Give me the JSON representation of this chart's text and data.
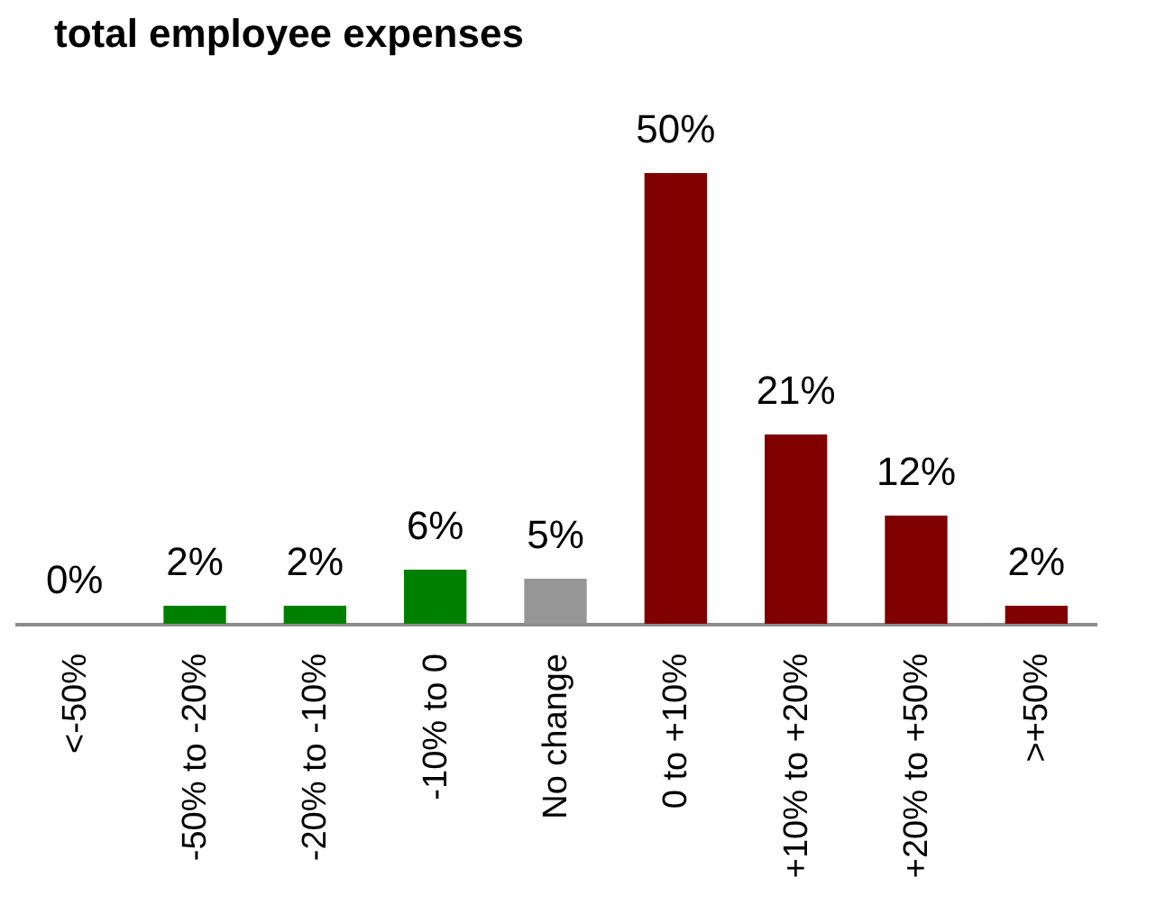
{
  "chart_data": {
    "type": "bar",
    "title": "total employee expenses",
    "categories": [
      "<-50%",
      "-50% to -20%",
      "-20% to -10%",
      "-10% to 0",
      "No change",
      "0 to +10%",
      "+10% to +20%",
      "+20% to +50%",
      ">+50%"
    ],
    "values": [
      0,
      2,
      2,
      6,
      5,
      50,
      21,
      12,
      2
    ],
    "colors": [
      "#008000",
      "#008000",
      "#008000",
      "#008000",
      "#969696",
      "#800000",
      "#800000",
      "#800000",
      "#800000"
    ],
    "value_labels": [
      "0%",
      "2%",
      "2%",
      "6%",
      "5%",
      "50%",
      "21%",
      "12%",
      "2%"
    ],
    "data_labels": true
  }
}
